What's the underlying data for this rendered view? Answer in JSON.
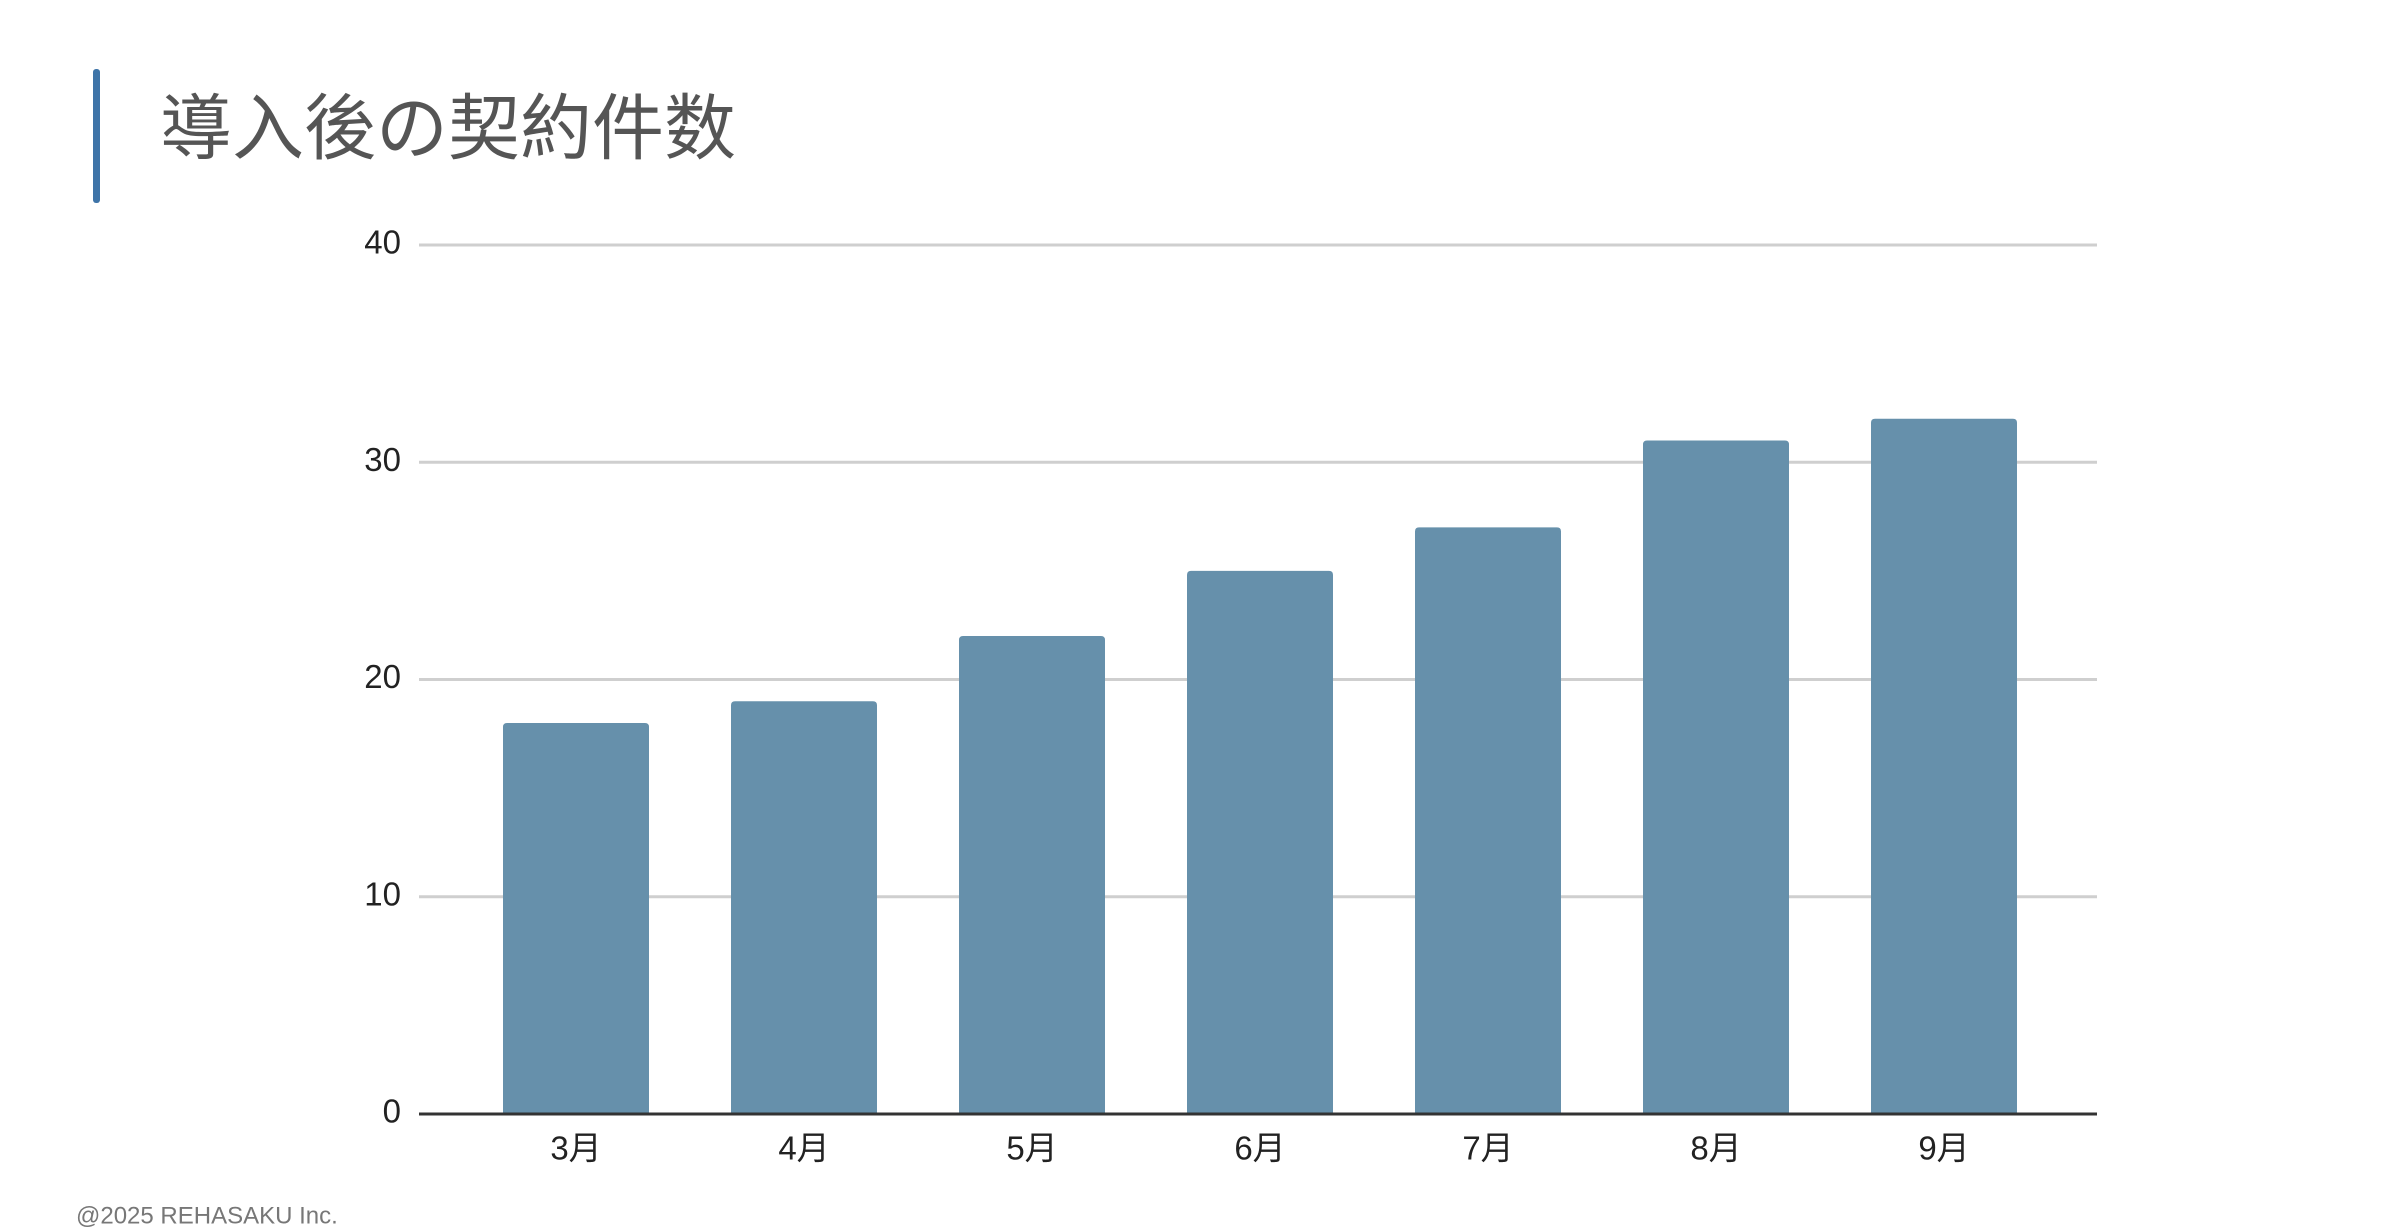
{
  "chart_data": {
    "type": "bar",
    "title": "導入後の契約件数",
    "categories": [
      "3月",
      "4月",
      "5月",
      "6月",
      "7月",
      "8月",
      "9月"
    ],
    "values": [
      18,
      19,
      22,
      25,
      27,
      31,
      32
    ],
    "color": "#6690ab",
    "ylim": [
      0,
      40
    ],
    "yticks": [
      0,
      10,
      20,
      30,
      40
    ],
    "grid": true
  },
  "footer": "@2025  REHASAKU Inc."
}
